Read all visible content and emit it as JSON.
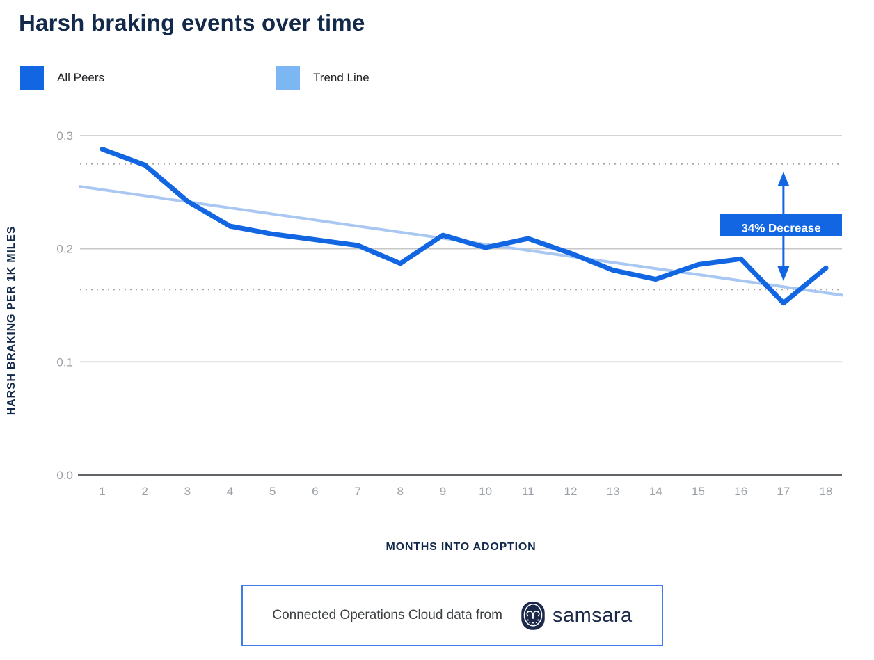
{
  "title": "Harsh braking events over time",
  "legend": [
    {
      "label": "All Peers",
      "color": "#1366E2"
    },
    {
      "label": "Trend Line",
      "color": "#7CB6F3"
    }
  ],
  "colors": {
    "accent_blue": "#1366E2",
    "trend_line": "#A9C7F3",
    "navy_text": "#13294B",
    "tick_gray": "#9AA0A6",
    "gridline": "#C7C7C7",
    "axis_line": "#606368",
    "dotted_line": "#A3A3A3"
  },
  "chart_data": {
    "type": "line",
    "x": [
      1,
      2,
      3,
      4,
      5,
      6,
      7,
      8,
      9,
      10,
      11,
      12,
      13,
      14,
      15,
      16,
      17,
      18
    ],
    "series": [
      {
        "name": "All Peers",
        "color": "#1366E2",
        "values": [
          0.288,
          0.274,
          0.242,
          0.22,
          0.213,
          0.208,
          0.203,
          0.187,
          0.212,
          0.201,
          0.209,
          0.196,
          0.181,
          0.173,
          0.186,
          0.191,
          0.152,
          0.183
        ]
      },
      {
        "name": "Trend Line",
        "color": "#A9C7F3",
        "trend_start": 0.255,
        "trend_end": 0.159
      }
    ],
    "title": "Harsh braking events over time",
    "xlabel": "MONTHS INTO ADOPTION",
    "ylabel": "HARSH BRAKING PER 1K MILES",
    "yticks": [
      0.0,
      0.1,
      0.2,
      0.3
    ],
    "ytick_labels": [
      "0.0",
      "0.1",
      "0.2",
      "0.3"
    ],
    "ylim": [
      0,
      0.32
    ],
    "grid": "horizontal",
    "legend_position": "top-left",
    "dotted_reference_lines": [
      0.275,
      0.164
    ],
    "annotation": {
      "label": "34% Decrease",
      "month": 17,
      "arrow_top_value": 0.268,
      "arrow_bottom_value": 0.1715
    }
  },
  "footer": {
    "text": "Connected Operations Cloud data from",
    "brand": "samsara"
  }
}
